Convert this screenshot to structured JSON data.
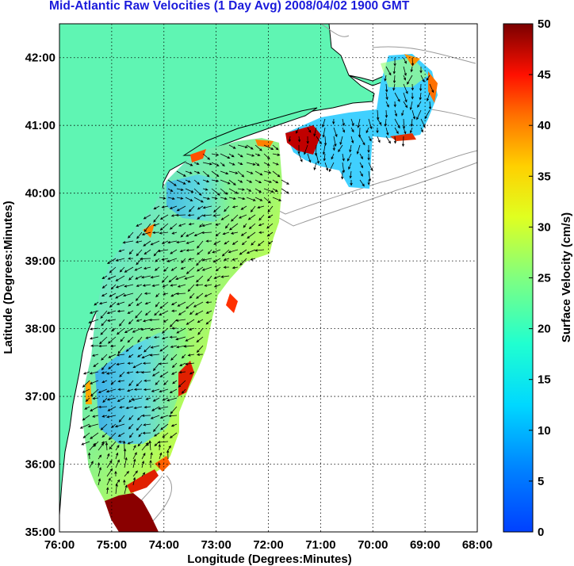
{
  "title": "Mid-Atlantic Raw Velocities (1 Day Avg) 2008/04/02 1900 GMT",
  "x_axis": {
    "label": "Longitude (Degrees:Minutes)",
    "ticks": [
      "76:00",
      "75:00",
      "74:00",
      "73:00",
      "72:00",
      "71:00",
      "70:00",
      "69:00",
      "68:00"
    ]
  },
  "y_axis": {
    "label": "Latitude (Degrees:Minutes)",
    "ticks": [
      "35:00",
      "36:00",
      "37:00",
      "38:00",
      "39:00",
      "40:00",
      "41:00",
      "42:00"
    ]
  },
  "colorbar": {
    "label": "Surface Velocity (cm/s)",
    "min": 0,
    "max": 50,
    "ticks": [
      "0",
      "5",
      "10",
      "15",
      "20",
      "25",
      "30",
      "35",
      "40",
      "45",
      "50"
    ]
  },
  "colors": {
    "land": "#5ff5b3",
    "title": "#1a1adb",
    "coast": "#000000",
    "bathymetry": "#9a9a9a"
  },
  "map": {
    "lon_range": [
      -76,
      -68
    ],
    "lat_range": [
      35,
      42.5
    ],
    "grid": true
  }
}
